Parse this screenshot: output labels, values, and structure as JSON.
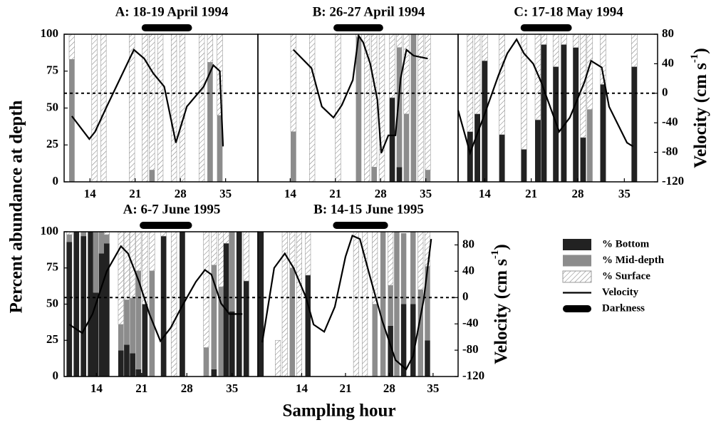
{
  "y_label": "Percent abundance at depth",
  "x_label": "Sampling hour",
  "chart_data": [
    {
      "type": "bar",
      "title": "A: 18-19 April 1994",
      "x": [
        11.2,
        14.7,
        16.1,
        20.5,
        22.5,
        23.6,
        24.9,
        27,
        28.3,
        31.3,
        32.6,
        34.1
      ],
      "xlim": [
        10,
        40
      ],
      "xticks": [
        14,
        21,
        28,
        35
      ],
      "ylim": [
        0,
        100
      ],
      "yticks": [
        0,
        25,
        50,
        75,
        100
      ],
      "y2lim": [
        -120,
        80
      ],
      "reference_line": 0,
      "series": [
        {
          "name": "% Bottom",
          "color": "#222222",
          "values": [
            0,
            0,
            0,
            0,
            0,
            0,
            0,
            0,
            0,
            0,
            0,
            0
          ]
        },
        {
          "name": "% Mid-depth",
          "color": "#8c8c8c",
          "values": [
            83,
            0,
            0,
            0,
            0,
            8,
            0,
            0,
            0,
            0,
            81,
            45
          ]
        },
        {
          "name": "% Surface",
          "color": "#ffffff",
          "hatch": true,
          "values": [
            17,
            100,
            100,
            100,
            100,
            92,
            100,
            100,
            100,
            100,
            19,
            55
          ]
        },
        {
          "name": "Velocity",
          "color": "#000000",
          "axis": "y2",
          "x": [
            11.2,
            13.9,
            14.8,
            16.6,
            20.8,
            22.4,
            23.8,
            25.5,
            27.3,
            29,
            31.6,
            33.1,
            34.1,
            34.6
          ],
          "values": [
            -31,
            -62,
            -52,
            -18,
            59,
            47,
            27,
            9,
            -67,
            -18,
            9,
            38,
            30,
            -72
          ]
        }
      ],
      "darkness": {
        "name": "Darkness",
        "x": [
          22,
          29.8
        ]
      }
    },
    {
      "type": "bar",
      "title": "B: 26-27 April 1994",
      "x": [
        14.5,
        17.4,
        21.4,
        24.6,
        25.9,
        27,
        28.2,
        29.8,
        30.9,
        32,
        33.1,
        34.2,
        35.3
      ],
      "xlim": [
        9,
        40
      ],
      "xticks": [
        14,
        21,
        28,
        35
      ],
      "ylim": [
        0,
        100
      ],
      "y2lim": [
        -120,
        80
      ],
      "reference_line": 0,
      "series": [
        {
          "color": "#222222",
          "values": [
            0,
            0,
            0,
            0,
            0,
            0,
            0,
            57,
            10,
            0,
            0,
            0,
            0
          ]
        },
        {
          "color": "#8c8c8c",
          "values": [
            34,
            0,
            0,
            98,
            0,
            10,
            0,
            0,
            81,
            46,
            100,
            0,
            8
          ]
        },
        {
          "color": "#ffffff",
          "hatch": true,
          "values": [
            66,
            100,
            100,
            2,
            100,
            90,
            100,
            43,
            9,
            54,
            0,
            100,
            92
          ]
        },
        {
          "color": "#000000",
          "axis": "y2",
          "x": [
            14.5,
            17.3,
            18.9,
            20.7,
            22,
            23.7,
            24.6,
            25.3,
            26.4,
            27.5,
            28.1,
            29.2,
            30.3,
            31.1,
            32,
            33.1,
            35.3
          ],
          "values": [
            59,
            34,
            -18,
            -33,
            -16,
            18,
            78,
            69,
            40,
            -9,
            -81,
            -57,
            -57,
            20,
            59,
            51,
            47
          ]
        }
      ],
      "darkness": {
        "x": [
          20.7,
          28.4
        ]
      }
    },
    {
      "type": "bar",
      "title": "C: 17-18 May 1994",
      "x": [
        11.8,
        12.9,
        14,
        16.6,
        19.9,
        22,
        22.9,
        24.7,
        25.9,
        27.7,
        28.8,
        29.8,
        31.8,
        36.5
      ],
      "xlim": [
        10,
        40
      ],
      "xticks": [
        14,
        21,
        28,
        35
      ],
      "ylim": [
        0,
        100
      ],
      "y2lim": [
        -120,
        80
      ],
      "y2ticks": [
        -120,
        -80,
        -40,
        0,
        40,
        80
      ],
      "reference_line": 0,
      "y2_label": {
        "text": "Velocity (cm s",
        "sup": "-1",
        "close": ")"
      },
      "series": [
        {
          "color": "#222222",
          "values": [
            34,
            46,
            82,
            32,
            22,
            42,
            93,
            78,
            93,
            91,
            30,
            0,
            66,
            78
          ]
        },
        {
          "color": "#8c8c8c",
          "values": [
            0,
            0,
            0,
            0,
            0,
            0,
            0,
            0,
            0,
            0,
            0,
            49,
            0,
            0
          ]
        },
        {
          "color": "#ffffff",
          "hatch": true,
          "values": [
            66,
            54,
            18,
            68,
            78,
            58,
            7,
            22,
            7,
            9,
            70,
            51,
            34,
            22
          ]
        },
        {
          "color": "#000000",
          "axis": "y2",
          "x": [
            10,
            11.8,
            14,
            16.1,
            17.4,
            18.8,
            19.9,
            21.3,
            22.5,
            25.2,
            26.8,
            29,
            30,
            31.6,
            32.7,
            35.4,
            36.3
          ],
          "values": [
            -23,
            -81,
            -28,
            25,
            54,
            73,
            54,
            40,
            15,
            -52,
            -33,
            15,
            44,
            35,
            -18,
            -67,
            -72
          ]
        }
      ],
      "darkness": {
        "x": [
          19.4,
          27.1
        ]
      }
    },
    {
      "type": "bar",
      "title": "A: 6-7 June 1995",
      "x": [
        9.8,
        10.9,
        12,
        13.1,
        13.9,
        14.8,
        15.6,
        17.8,
        18.7,
        19.6,
        20.5,
        21.5,
        22.6,
        24.4,
        26,
        27.3,
        31,
        32.2,
        33.3,
        34.1,
        35,
        36.1,
        37.2
      ],
      "xlim": [
        9,
        39
      ],
      "xticks": [
        14,
        21,
        28,
        35
      ],
      "ylim": [
        0,
        100
      ],
      "yticks": [
        0,
        25,
        50,
        75,
        100
      ],
      "y2lim": [
        -120,
        100
      ],
      "reference_line": 0,
      "series": [
        {
          "color": "#222222",
          "values": [
            93,
            100,
            97,
            100,
            58,
            85,
            92,
            18,
            22,
            16,
            5,
            50,
            0,
            97,
            0,
            100,
            0,
            5,
            0,
            92,
            45,
            100,
            66
          ]
        },
        {
          "color": "#8c8c8c",
          "values": [
            5,
            0,
            3,
            0,
            42,
            15,
            6,
            18,
            31,
            38,
            68,
            0,
            73,
            0,
            0,
            0,
            20,
            72,
            62,
            0,
            55,
            0,
            0
          ]
        },
        {
          "color": "#ffffff",
          "hatch": true,
          "values": [
            2,
            0,
            0,
            0,
            0,
            0,
            2,
            64,
            47,
            46,
            27,
            50,
            27,
            3,
            100,
            0,
            80,
            23,
            38,
            8,
            0,
            0,
            34
          ]
        },
        {
          "color": "#000000",
          "axis": "y2",
          "x": [
            9.8,
            11.8,
            13.4,
            15.6,
            17.8,
            18.9,
            20.6,
            22.2,
            23.9,
            25.5,
            27.2,
            29.4,
            30.8,
            31.8,
            33.3,
            34.6,
            36.6
          ],
          "values": [
            -41,
            -54,
            -25,
            40,
            78,
            67,
            24,
            -25,
            -66,
            -46,
            -14,
            24,
            42,
            35,
            -9,
            -25,
            -25
          ]
        }
      ],
      "darkness": {
        "x": [
          20.7,
          28.8
        ]
      }
    },
    {
      "type": "bar",
      "title": "B: 14-15 June 1995",
      "x": [
        7.5,
        10.2,
        11.3,
        12.5,
        13.6,
        15,
        22.7,
        24.1,
        25.7,
        27,
        28.2,
        29.2,
        30.3,
        31.8,
        33,
        34.1
      ],
      "xlim": [
        7,
        39
      ],
      "xticks": [
        14,
        21,
        28,
        35
      ],
      "ylim": [
        0,
        100
      ],
      "y2lim": [
        -120,
        100
      ],
      "y2ticks": [
        -120,
        -80,
        -40,
        0,
        40,
        80
      ],
      "reference_line": 0,
      "y2_label": {
        "text": "Velocity (cm s",
        "sup": "-1",
        "close": ")"
      },
      "series": [
        {
          "color": "#222222",
          "values": [
            100,
            0,
            0,
            0,
            0,
            70,
            0,
            0,
            0,
            0,
            35,
            0,
            50,
            50,
            0,
            25
          ]
        },
        {
          "color": "#8c8c8c",
          "values": [
            0,
            0,
            0,
            75,
            0,
            0,
            0,
            0,
            50,
            100,
            28,
            100,
            49,
            50,
            60,
            51
          ]
        },
        {
          "color": "#ffffff",
          "hatch": true,
          "values": [
            0,
            25,
            100,
            25,
            100,
            30,
            100,
            100,
            50,
            0,
            37,
            0,
            0,
            0,
            40,
            24
          ]
        },
        {
          "color": "#000000",
          "axis": "y2",
          "x": [
            7.7,
            9.6,
            11.3,
            12.7,
            14.7,
            15.9,
            17.6,
            19.3,
            21,
            22.1,
            23.3,
            25,
            26.9,
            29,
            30.7,
            31.8,
            33.5,
            34.7
          ],
          "values": [
            -68,
            45,
            67,
            45,
            0,
            -41,
            -52,
            -14,
            62,
            94,
            89,
            29,
            -36,
            -95,
            -109,
            -89,
            -3,
            89
          ]
        }
      ],
      "darkness": {
        "x": [
          19,
          27.8
        ]
      }
    }
  ]
}
